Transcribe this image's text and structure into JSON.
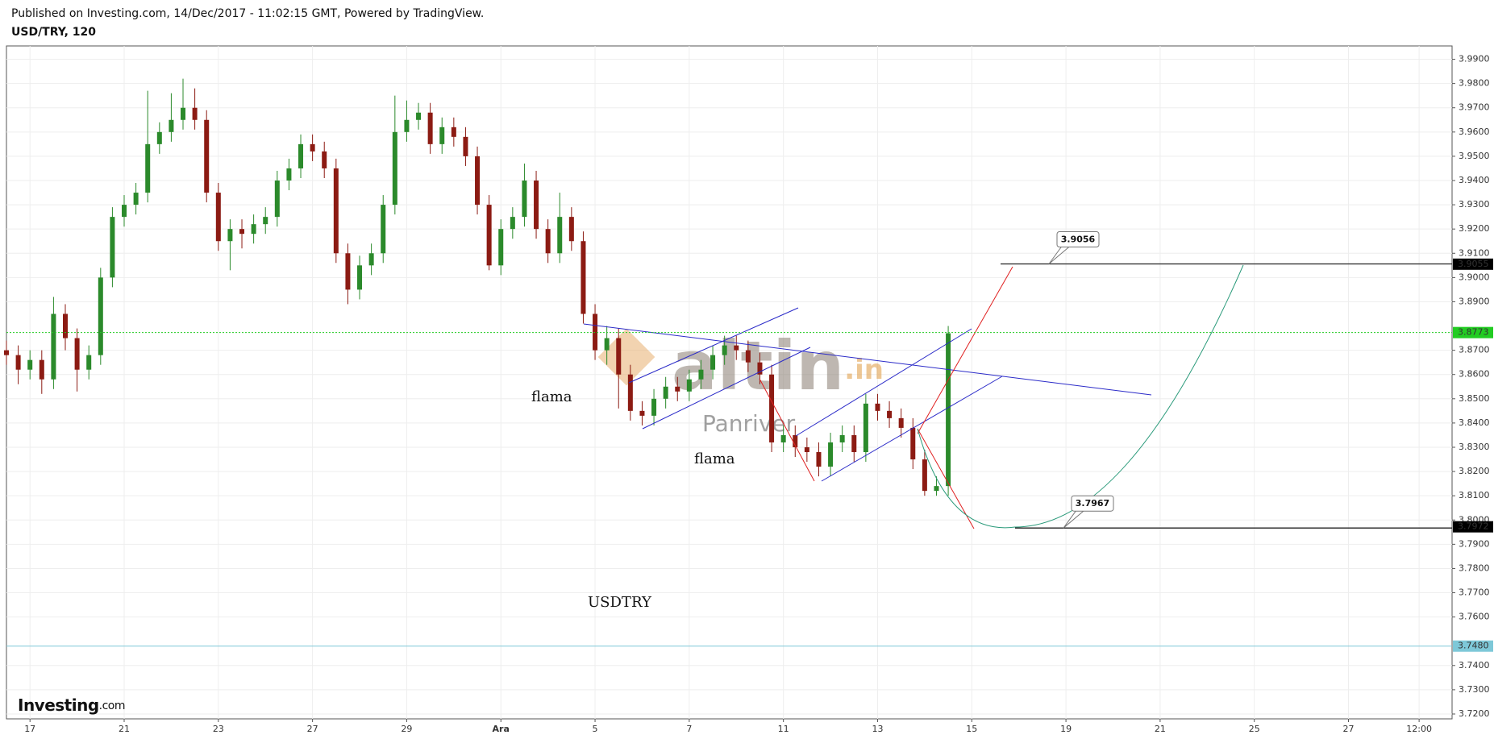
{
  "header": {
    "published": "Published on Investing.com, 14/Dec/2017 - 11:02:15 GMT, Powered by TradingView.",
    "symbol": "USD/TRY, 120"
  },
  "logo": {
    "name": "Investing",
    "suffix": ".com"
  },
  "watermark": {
    "main": "altin",
    "suffix": ".in",
    "sub": "Panriver"
  },
  "chart_data": {
    "type": "candlestick",
    "up_color": "#2b8a2b",
    "down_color": "#8c1b13",
    "grid": true,
    "xlim": [
      -0.5,
      30.2
    ],
    "ylim": [
      3.718,
      3.9955
    ],
    "xticks": [
      {
        "value": 0,
        "label": "17"
      },
      {
        "value": 2,
        "label": "21"
      },
      {
        "value": 4,
        "label": "23"
      },
      {
        "value": 6,
        "label": "27"
      },
      {
        "value": 8,
        "label": "29"
      },
      {
        "value": 10,
        "label": "Ara"
      },
      {
        "value": 12,
        "label": "5"
      },
      {
        "value": 14,
        "label": "7"
      },
      {
        "value": 16,
        "label": "11"
      },
      {
        "value": 18,
        "label": "13"
      },
      {
        "value": 20,
        "label": "15"
      },
      {
        "value": 22,
        "label": "19"
      },
      {
        "value": 24,
        "label": "21"
      },
      {
        "value": 26,
        "label": "25"
      },
      {
        "value": 28,
        "label": "27"
      },
      {
        "value": 29.5,
        "label": "12:00"
      }
    ],
    "yticks": [
      {
        "value": 3.72,
        "label": "3.7200"
      },
      {
        "value": 3.73,
        "label": "3.7300"
      },
      {
        "value": 3.74,
        "label": "3.7400"
      },
      {
        "value": 3.76,
        "label": "3.7600"
      },
      {
        "value": 3.77,
        "label": "3.7700"
      },
      {
        "value": 3.78,
        "label": "3.7800"
      },
      {
        "value": 3.79,
        "label": "3.7900"
      },
      {
        "value": 3.8,
        "label": "3.8000"
      },
      {
        "value": 3.81,
        "label": "3.8100"
      },
      {
        "value": 3.82,
        "label": "3.8200"
      },
      {
        "value": 3.83,
        "label": "3.8300"
      },
      {
        "value": 3.84,
        "label": "3.8400"
      },
      {
        "value": 3.85,
        "label": "3.8500"
      },
      {
        "value": 3.86,
        "label": "3.8600"
      },
      {
        "value": 3.87,
        "label": "3.8700"
      },
      {
        "value": 3.89,
        "label": "3.8900"
      },
      {
        "value": 3.9,
        "label": "3.9000"
      },
      {
        "value": 3.91,
        "label": "3.9100"
      },
      {
        "value": 3.92,
        "label": "3.9200"
      },
      {
        "value": 3.93,
        "label": "3.9300"
      },
      {
        "value": 3.94,
        "label": "3.9400"
      },
      {
        "value": 3.95,
        "label": "3.9500"
      },
      {
        "value": 3.96,
        "label": "3.9600"
      },
      {
        "value": 3.97,
        "label": "3.9700"
      },
      {
        "value": 3.98,
        "label": "3.9800"
      },
      {
        "value": 3.99,
        "label": "3.9900"
      }
    ],
    "x": [
      -0.5,
      -0.25,
      0,
      0.25,
      0.5,
      0.75,
      1,
      1.25,
      1.5,
      1.75,
      2,
      2.25,
      2.5,
      2.75,
      3,
      3.25,
      3.5,
      3.75,
      4,
      4.25,
      4.5,
      4.75,
      5,
      5.25,
      5.5,
      5.75,
      6,
      6.25,
      6.5,
      6.75,
      7,
      7.25,
      7.5,
      7.75,
      8,
      8.25,
      8.5,
      8.75,
      9,
      9.25,
      9.5,
      9.75,
      10,
      10.25,
      10.5,
      10.75,
      11,
      11.25,
      11.5,
      11.75,
      12,
      12.25,
      12.5,
      12.75,
      13,
      13.25,
      13.5,
      13.75,
      14,
      14.25,
      14.5,
      14.75,
      15,
      15.25,
      15.5,
      15.75,
      16,
      16.25,
      16.5,
      16.75,
      17,
      17.25,
      17.5,
      17.75,
      18,
      18.25,
      18.5,
      18.75,
      19,
      19.25,
      19.5
    ],
    "open": [
      3.87,
      3.868,
      3.862,
      3.866,
      3.858,
      3.885,
      3.875,
      3.862,
      3.868,
      3.9,
      3.925,
      3.93,
      3.935,
      3.955,
      3.96,
      3.965,
      3.97,
      3.965,
      3.935,
      3.915,
      3.92,
      3.918,
      3.922,
      3.925,
      3.94,
      3.945,
      3.955,
      3.952,
      3.945,
      3.91,
      3.895,
      3.905,
      3.91,
      3.93,
      3.96,
      3.965,
      3.968,
      3.955,
      3.962,
      3.958,
      3.95,
      3.93,
      3.905,
      3.92,
      3.925,
      3.94,
      3.92,
      3.91,
      3.925,
      3.915,
      3.885,
      3.87,
      3.875,
      3.86,
      3.845,
      3.843,
      3.85,
      3.855,
      3.853,
      3.858,
      3.862,
      3.868,
      3.872,
      3.87,
      3.865,
      3.86,
      3.832,
      3.835,
      3.83,
      3.828,
      3.822,
      3.832,
      3.835,
      3.828,
      3.848,
      3.845,
      3.842,
      3.838,
      3.825,
      3.812,
      3.814
    ],
    "high": [
      3.874,
      3.872,
      3.87,
      3.87,
      3.892,
      3.889,
      3.879,
      3.872,
      3.904,
      3.929,
      3.934,
      3.939,
      3.977,
      3.964,
      3.976,
      3.982,
      3.978,
      3.969,
      3.939,
      3.924,
      3.924,
      3.926,
      3.929,
      3.944,
      3.949,
      3.959,
      3.959,
      3.956,
      3.949,
      3.914,
      3.909,
      3.914,
      3.934,
      3.975,
      3.973,
      3.972,
      3.972,
      3.966,
      3.966,
      3.962,
      3.954,
      3.934,
      3.924,
      3.929,
      3.947,
      3.944,
      3.924,
      3.935,
      3.929,
      3.919,
      3.889,
      3.88,
      3.879,
      3.864,
      3.849,
      3.854,
      3.859,
      3.859,
      3.862,
      3.866,
      3.872,
      3.876,
      3.876,
      3.874,
      3.869,
      3.864,
      3.839,
      3.839,
      3.834,
      3.832,
      3.836,
      3.839,
      3.839,
      3.852,
      3.852,
      3.849,
      3.846,
      3.842,
      3.829,
      3.818,
      3.88
    ],
    "low": [
      3.864,
      3.856,
      3.858,
      3.852,
      3.854,
      3.87,
      3.853,
      3.858,
      3.864,
      3.896,
      3.921,
      3.926,
      3.931,
      3.951,
      3.956,
      3.961,
      3.961,
      3.931,
      3.911,
      3.903,
      3.912,
      3.914,
      3.918,
      3.921,
      3.936,
      3.941,
      3.948,
      3.941,
      3.906,
      3.889,
      3.891,
      3.901,
      3.906,
      3.926,
      3.956,
      3.961,
      3.951,
      3.951,
      3.954,
      3.946,
      3.926,
      3.903,
      3.901,
      3.916,
      3.921,
      3.916,
      3.906,
      3.906,
      3.911,
      3.881,
      3.866,
      3.864,
      3.846,
      3.841,
      3.839,
      3.839,
      3.846,
      3.849,
      3.849,
      3.854,
      3.858,
      3.864,
      3.866,
      3.861,
      3.856,
      3.828,
      3.828,
      3.826,
      3.824,
      3.818,
      3.818,
      3.828,
      3.824,
      3.824,
      3.841,
      3.838,
      3.834,
      3.821,
      3.81,
      3.81,
      3.81
    ],
    "close": [
      3.868,
      3.862,
      3.866,
      3.858,
      3.885,
      3.875,
      3.862,
      3.868,
      3.9,
      3.925,
      3.93,
      3.935,
      3.955,
      3.96,
      3.965,
      3.97,
      3.965,
      3.935,
      3.915,
      3.92,
      3.918,
      3.922,
      3.925,
      3.94,
      3.945,
      3.955,
      3.952,
      3.945,
      3.91,
      3.895,
      3.905,
      3.91,
      3.93,
      3.96,
      3.965,
      3.968,
      3.955,
      3.962,
      3.958,
      3.95,
      3.93,
      3.905,
      3.92,
      3.925,
      3.94,
      3.92,
      3.91,
      3.925,
      3.915,
      3.885,
      3.87,
      3.875,
      3.86,
      3.845,
      3.843,
      3.85,
      3.855,
      3.853,
      3.858,
      3.862,
      3.868,
      3.872,
      3.87,
      3.865,
      3.86,
      3.832,
      3.835,
      3.83,
      3.828,
      3.822,
      3.832,
      3.835,
      3.828,
      3.848,
      3.845,
      3.842,
      3.838,
      3.825,
      3.812,
      3.814,
      3.877
    ],
    "levels": [
      {
        "value": 3.9055,
        "label": "3.9055",
        "color": "#000000",
        "text_color": "#ffffff"
      },
      {
        "value": 3.8773,
        "label": "3.8773",
        "color": "#22cc22",
        "text_color": "#000000",
        "line": "dotted"
      },
      {
        "value": 3.7972,
        "label": "3.7972",
        "color": "#000000",
        "text_color": "#ffffff"
      },
      {
        "value": 3.748,
        "label": "3.7480",
        "color": "#7ec8d8",
        "text_color": "#000000",
        "line": "solid"
      }
    ],
    "callouts": [
      {
        "value": 3.9056
      },
      {
        "value": 3.7967
      }
    ],
    "annotations": [
      "flama",
      "flama",
      "USDTRY"
    ]
  }
}
